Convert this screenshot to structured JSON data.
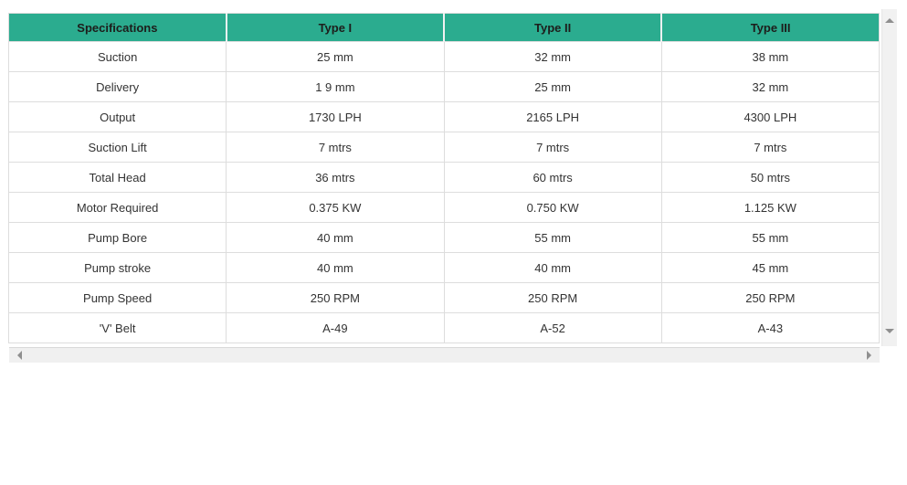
{
  "table": {
    "headers": [
      {
        "label": "Specifications"
      },
      {
        "label": "Type I"
      },
      {
        "label": "Type II"
      },
      {
        "label": "Type III"
      }
    ],
    "rows": [
      {
        "label": "Suction",
        "values": [
          "25 mm",
          "32 mm",
          "38 mm"
        ]
      },
      {
        "label": "Delivery",
        "values": [
          "1 9 mm",
          "25 mm",
          "32 mm"
        ]
      },
      {
        "label": "Output",
        "values": [
          "1730 LPH",
          "2165 LPH",
          "4300 LPH"
        ]
      },
      {
        "label": "Suction Lift",
        "values": [
          "7 mtrs",
          "7 mtrs",
          "7 mtrs"
        ]
      },
      {
        "label": "Total Head",
        "values": [
          "36 mtrs",
          "60 mtrs",
          "50 mtrs"
        ]
      },
      {
        "label": "Motor Required",
        "values": [
          "0.375 KW",
          "0.750 KW",
          "1.125 KW"
        ]
      },
      {
        "label": "Pump Bore",
        "values": [
          "40 mm",
          "55 mm",
          "55 mm"
        ]
      },
      {
        "label": "Pump stroke",
        "values": [
          "40 mm",
          "40 mm",
          "45 mm"
        ]
      },
      {
        "label": "Pump Speed",
        "values": [
          "250 RPM",
          "250 RPM",
          "250 RPM"
        ]
      },
      {
        "label": "'V' Belt",
        "values": [
          "A-49",
          "A-52",
          "A-43"
        ]
      }
    ]
  },
  "icons": {
    "scroll_up": "triangle-up",
    "scroll_down": "triangle-down",
    "scroll_left": "triangle-left",
    "scroll_right": "triangle-right"
  },
  "colors": {
    "header_bg": "#2bac8f",
    "header_text": "#1d1d1b",
    "cell_text": "#333333",
    "grid_border": "#dddddd",
    "scrollbar_track": "#f1f1f1",
    "scrollbar_arrow": "#8f8f8f"
  }
}
